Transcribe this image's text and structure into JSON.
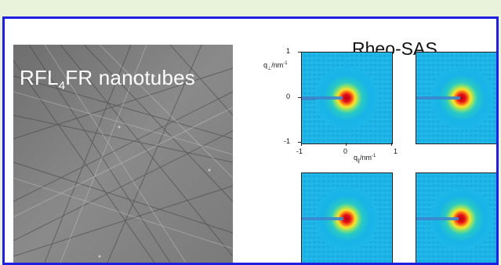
{
  "micrograph": {
    "label_prefix": "RFL",
    "label_subscript": "4",
    "label_suffix": "FR nanotubes"
  },
  "sas": {
    "title": "Rheo-SAS",
    "y_axis": {
      "label_main": "q",
      "label_sub": "⊥",
      "label_unit": "/nm",
      "label_sup": "-1",
      "ticks": [
        "1",
        "0",
        "-1"
      ]
    },
    "x_axis": {
      "label_main": "q",
      "label_sub": "∥",
      "label_unit": "/nm",
      "label_sup": "-1",
      "ticks": [
        "-1",
        "0",
        "1"
      ]
    }
  },
  "colors": {
    "frame": "#1f1fe0",
    "page_background": "#e9f3dc",
    "pattern_background": "#1cb5e6",
    "pattern_core": "#c2000e"
  }
}
